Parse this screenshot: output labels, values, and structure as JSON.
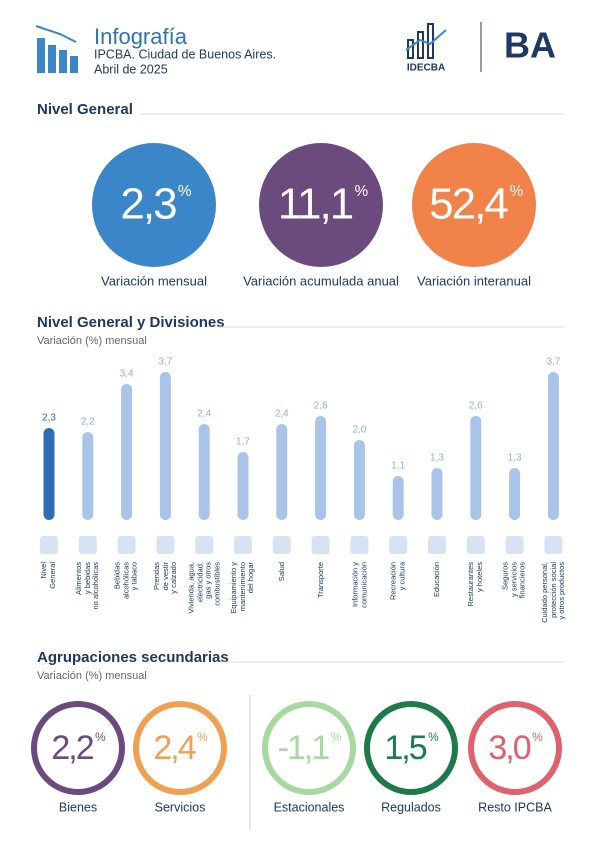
{
  "header": {
    "title": "Infografía",
    "subtitle": "IPCBA. Ciudad de Buenos Aires.",
    "date": "Abril de 2025",
    "logo_text": "IDECBA",
    "ba_logo": "BA"
  },
  "unit": "%",
  "nivel_general": {
    "title": "Nivel General",
    "items": [
      {
        "value": "2,3",
        "label": "Variación mensual",
        "color": "#3a86c8"
      },
      {
        "value": "11,1",
        "label": "Variación acumulada anual",
        "color": "#6b4a7e"
      },
      {
        "value": "52,4",
        "label": "Variación interanual",
        "color": "#f0824a"
      }
    ]
  },
  "chart_data": {
    "type": "bar",
    "title": "Nivel General y Divisiones",
    "subtitle": "Variación (%) mensual",
    "categories": [
      "Nivel\nGeneral",
      "Alimentos\ny bebidas\nno alcohólicas",
      "Bebidas\nalcohólicas\ny tabaco",
      "Prendas\nde vestir\ny calzado",
      "Vivienda, agua,\nelectricidad,\ngas y otros\ncombustibles",
      "Equipamiento y\nmantenimiento\ndel hogar",
      "Salud",
      "Transporte",
      "Información y\ncomunicación",
      "Recreación\ny cultura",
      "Educación",
      "Restaurantes\ny hoteles",
      "Seguros\ny servicios\nfinancieros",
      "Cuidado personal,\nprotección social\ny otros productos"
    ],
    "values": [
      2.3,
      2.2,
      3.4,
      3.7,
      2.4,
      1.7,
      2.4,
      2.6,
      2.0,
      1.1,
      1.3,
      2.6,
      1.3,
      3.7
    ],
    "value_labels": [
      "2,3",
      "2,2",
      "3,4",
      "3,7",
      "2,4",
      "1,7",
      "2,4",
      "2,6",
      "2,0",
      "1,1",
      "1,3",
      "2,6",
      "1,3",
      "3,7"
    ],
    "colors": [
      "#2f6db5",
      "#a9c4e8",
      "#a9c4e8",
      "#a9c4e8",
      "#a9c4e8",
      "#a9c4e8",
      "#a9c4e8",
      "#a9c4e8",
      "#a9c4e8",
      "#a9c4e8",
      "#a9c4e8",
      "#a9c4e8",
      "#a9c4e8",
      "#a9c4e8"
    ]
  },
  "agrupaciones": {
    "title": "Agrupaciones secundarias",
    "subtitle": "Variación (%) mensual",
    "items": [
      {
        "value": "2,2",
        "label": "Bienes",
        "color": "#6b4a7e"
      },
      {
        "value": "2,4",
        "label": "Servicios",
        "color": "#f0a050"
      },
      {
        "value": "-1,1",
        "label": "Estacionales",
        "color": "#a8d8a0"
      },
      {
        "value": "1,5",
        "label": "Regulados",
        "color": "#1d7a4a"
      },
      {
        "value": "3,0",
        "label": "Resto IPCBA",
        "color": "#e0606e"
      }
    ]
  }
}
